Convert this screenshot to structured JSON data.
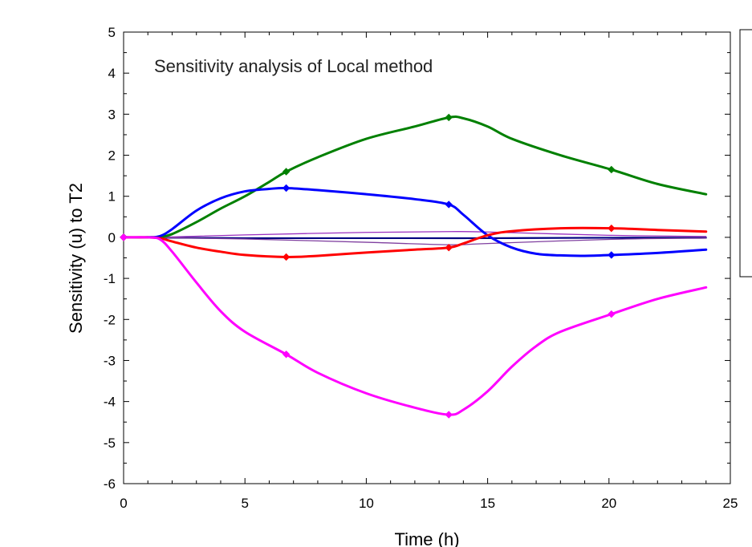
{
  "chart_data": {
    "type": "line",
    "title": "Sensitivity analysis of Local method",
    "xlabel": "Time (h)",
    "ylabel": "Sensitivity (u) to T2",
    "xlim": [
      0,
      25
    ],
    "ylim": [
      -6,
      5
    ],
    "x_ticks": [
      0,
      5,
      10,
      15,
      20,
      25
    ],
    "y_ticks": [
      -6,
      -5,
      -4,
      -3,
      -2,
      -1,
      0,
      1,
      2,
      3,
      4,
      5
    ],
    "grid": false,
    "legend_placement": "right",
    "series": [
      {
        "color": "#008000",
        "x": [
          0,
          1,
          1.5,
          2,
          3,
          4,
          5,
          6,
          6.7,
          8,
          10,
          12,
          13.4,
          14,
          15,
          16,
          18,
          20.1,
          22,
          24
        ],
        "y": [
          0,
          0,
          0.01,
          0.08,
          0.37,
          0.7,
          1.0,
          1.35,
          1.6,
          1.95,
          2.4,
          2.7,
          2.92,
          2.9,
          2.7,
          2.4,
          2.0,
          1.65,
          1.3,
          1.05
        ],
        "markers_x": [
          0,
          6.7,
          13.4,
          20.1
        ]
      },
      {
        "color": "#0000ff",
        "x": [
          0,
          1,
          1.5,
          2,
          3,
          4,
          5,
          6,
          6.7,
          8,
          10,
          12,
          13.4,
          14,
          15,
          16,
          17,
          18,
          19,
          20.1,
          22,
          24
        ],
        "y": [
          0,
          0,
          0.03,
          0.2,
          0.65,
          0.95,
          1.12,
          1.18,
          1.2,
          1.15,
          1.05,
          0.93,
          0.8,
          0.55,
          0.05,
          -0.25,
          -0.4,
          -0.44,
          -0.45,
          -0.43,
          -0.38,
          -0.3
        ],
        "markers_x": [
          0,
          6.7,
          13.4,
          20.1
        ]
      },
      {
        "color": "#ff0000",
        "x": [
          0,
          1,
          1.5,
          2,
          3,
          4,
          5,
          6.7,
          8,
          10,
          12,
          13.4,
          14,
          15,
          16,
          18,
          20.1,
          22,
          24
        ],
        "y": [
          0,
          0,
          -0.02,
          -0.1,
          -0.25,
          -0.35,
          -0.43,
          -0.48,
          -0.45,
          -0.37,
          -0.3,
          -0.25,
          -0.15,
          0.05,
          0.15,
          0.22,
          0.22,
          0.18,
          0.14
        ],
        "markers_x": [
          0,
          6.7,
          13.4,
          20.1
        ]
      },
      {
        "color": "#ff00ff",
        "x": [
          0,
          1,
          1.5,
          2,
          3,
          4,
          5,
          6.7,
          8,
          10,
          12,
          13.4,
          14,
          15,
          16,
          17,
          18,
          20.1,
          22,
          24
        ],
        "y": [
          0,
          0,
          -0.05,
          -0.35,
          -1.1,
          -1.8,
          -2.3,
          -2.85,
          -3.3,
          -3.8,
          -4.15,
          -4.32,
          -4.2,
          -3.75,
          -3.15,
          -2.65,
          -2.3,
          -1.87,
          -1.5,
          -1.22
        ],
        "markers_x": [
          0,
          6.7,
          13.4,
          20.1
        ]
      },
      {
        "color": "#000080",
        "x": [
          0,
          1,
          2,
          5,
          10,
          15,
          20,
          24
        ],
        "y": [
          0,
          0,
          -0.01,
          -0.02,
          -0.02,
          -0.02,
          -0.01,
          -0.01
        ],
        "markers_x": [
          0
        ]
      },
      {
        "color": "#9b30c0",
        "x": [
          0,
          1,
          2,
          5,
          10,
          13.4,
          15,
          20,
          24
        ],
        "y": [
          0,
          0,
          0.01,
          0.06,
          0.12,
          0.14,
          0.13,
          0.05,
          0.02
        ],
        "markers_x": [
          0
        ]
      },
      {
        "color": "#8040a0",
        "x": [
          0,
          1,
          2,
          5,
          10,
          13.4,
          15,
          20,
          24
        ],
        "y": [
          0,
          0,
          -0.01,
          -0.04,
          -0.12,
          -0.18,
          -0.15,
          -0.05,
          -0.02
        ],
        "markers_x": [
          0
        ]
      }
    ]
  }
}
